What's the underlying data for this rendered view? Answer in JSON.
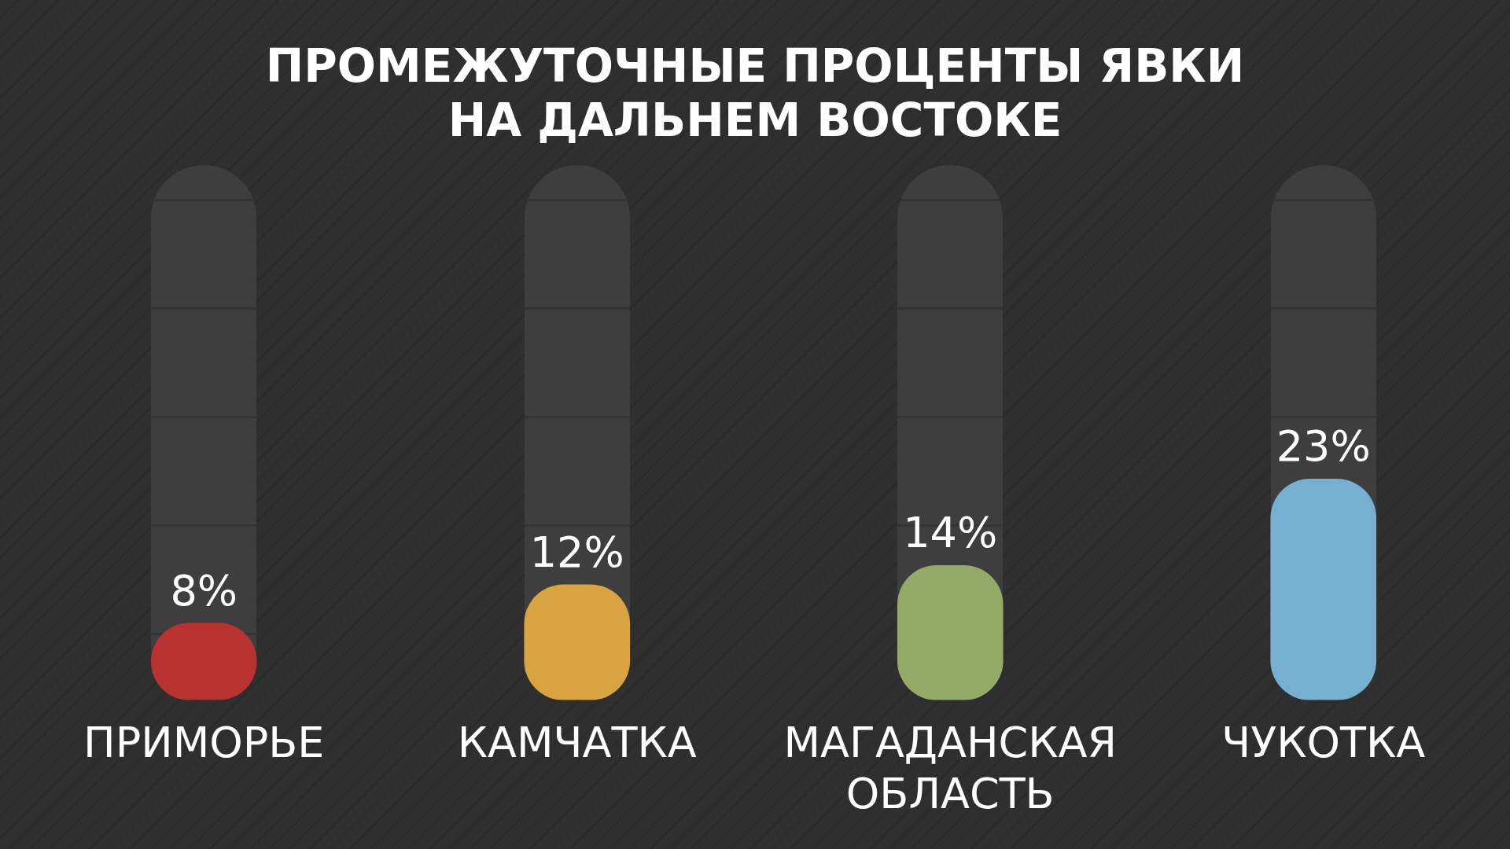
{
  "chart_data": {
    "type": "bar",
    "title": "ПРОМЕЖУТОЧНЫЕ ПРОЦЕНТЫ ЯВКИ НА ДАЛЬНЕМ ВОСТОКЕ",
    "categories": [
      "ПРИМОРЬЕ",
      "КАМЧАТКА",
      "МАГАДАНСКАЯ ОБЛАСТЬ",
      "ЧУКОТКА"
    ],
    "values": [
      8,
      12,
      14,
      23
    ],
    "colors": [
      "#b83230",
      "#d9a342",
      "#93ab66",
      "#75b0d0"
    ],
    "value_labels": [
      "8%",
      "12%",
      "14%",
      "23%"
    ]
  }
}
